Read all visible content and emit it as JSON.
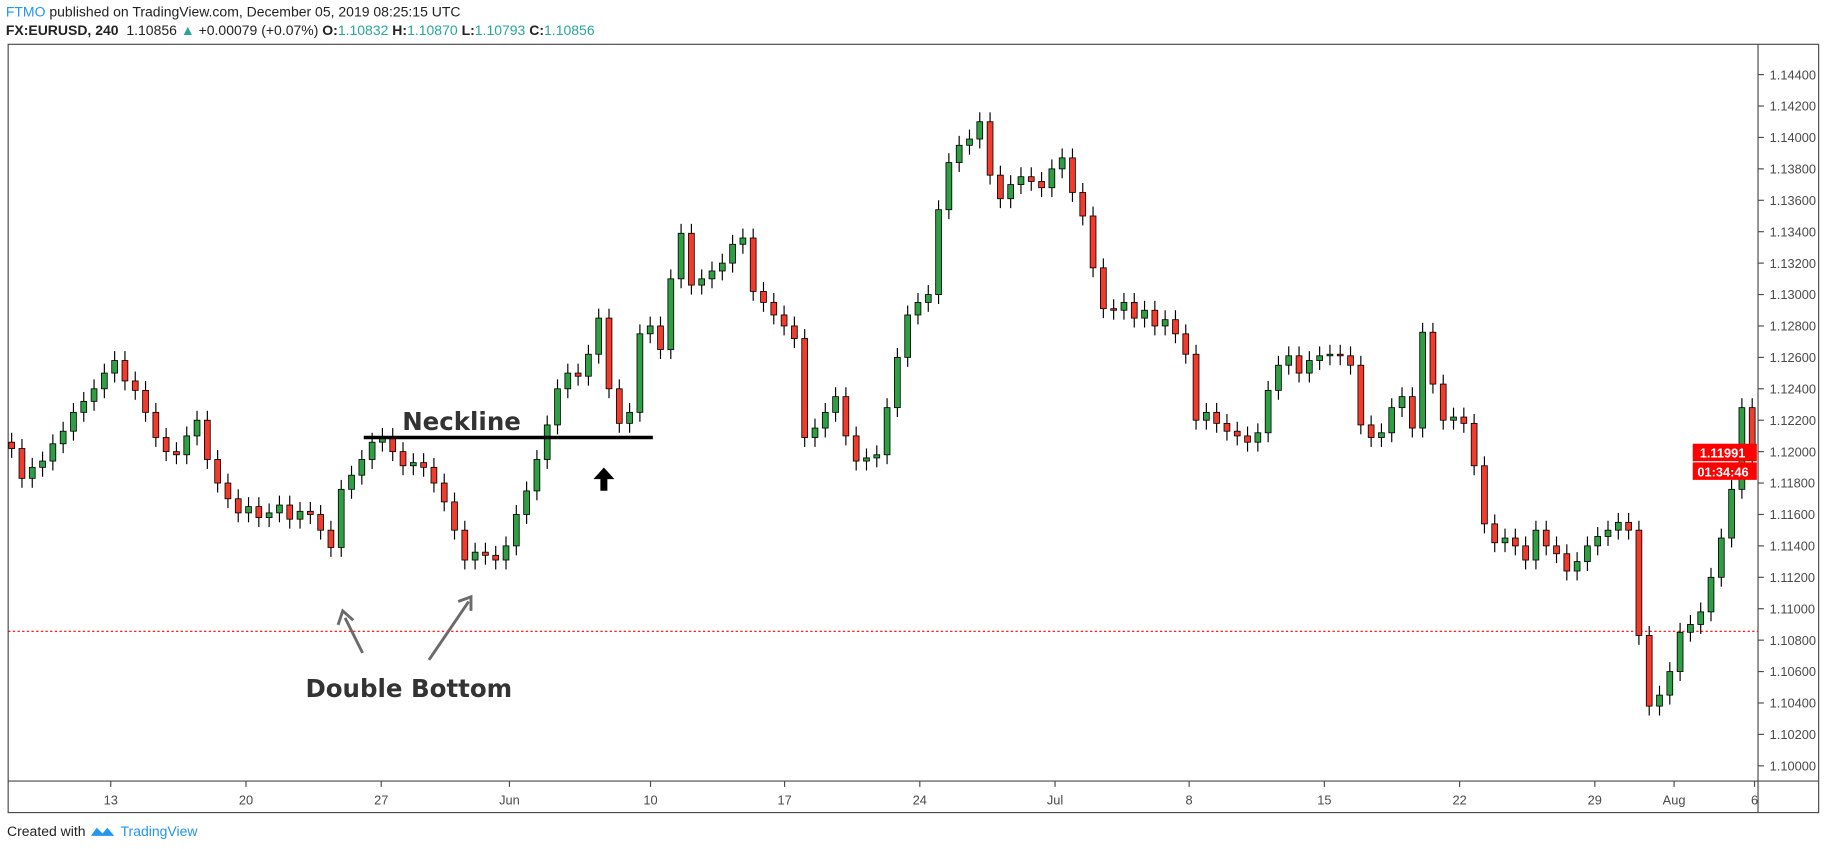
{
  "header": {
    "publisher": "FTMO",
    "published_text": "published on TradingView.com, December 05, 2019 08:25:15 UTC",
    "symbol": "FX:EURUSD, 240",
    "last": "1.10856",
    "change": "+0.00079 (+0.07%)",
    "o_label": "O:",
    "o": "1.10832",
    "h_label": "H:",
    "h": "1.10870",
    "l_label": "L:",
    "l": "1.10793",
    "c_label": "C:",
    "c": "1.10856",
    "up_icon": "triangle-up-icon"
  },
  "footer": {
    "created_with": "Created with",
    "brand": "TradingView"
  },
  "colors": {
    "up": "#2ea043",
    "down": "#f23b2b",
    "price_line": "#ff0000",
    "axis_text": "#4a4a4a",
    "brand": "#2196f3"
  },
  "chart_data": {
    "type": "candlestick",
    "symbol": "FX:EURUSD",
    "interval": "240",
    "ylim": [
      1.099,
      1.145
    ],
    "y_ticks": [
      "1.14400",
      "1.14200",
      "1.14000",
      "1.13800",
      "1.13600",
      "1.13400",
      "1.13200",
      "1.13000",
      "1.12800",
      "1.12600",
      "1.12400",
      "1.12200",
      "1.12000",
      "1.11800",
      "1.11600",
      "1.11400",
      "1.11200",
      "1.11000",
      "1.10800",
      "1.10600",
      "1.10400",
      "1.10200",
      "1.10000"
    ],
    "x_ticks": [
      "13",
      "20",
      "27",
      "Jun",
      "10",
      "17",
      "24",
      "Jul",
      "8",
      "15",
      "22",
      "29",
      "Aug",
      "6"
    ],
    "closes": [
      1.1202,
      1.1183,
      1.119,
      1.1194,
      1.1205,
      1.1213,
      1.1225,
      1.1232,
      1.124,
      1.125,
      1.1258,
      1.1245,
      1.1239,
      1.1225,
      1.1209,
      1.12,
      1.1198,
      1.121,
      1.122,
      1.1195,
      1.118,
      1.117,
      1.1161,
      1.1165,
      1.1158,
      1.1161,
      1.1166,
      1.1157,
      1.1162,
      1.116,
      1.115,
      1.1139,
      1.1176,
      1.1185,
      1.1195,
      1.1206,
      1.1209,
      1.12,
      1.1191,
      1.1193,
      1.119,
      1.118,
      1.1168,
      1.115,
      1.1131,
      1.1136,
      1.1134,
      1.1131,
      1.114,
      1.116,
      1.1175,
      1.1195,
      1.1217,
      1.124,
      1.125,
      1.1248,
      1.1262,
      1.1285,
      1.124,
      1.1218,
      1.1225,
      1.1275,
      1.128,
      1.1265,
      1.131,
      1.1339,
      1.1306,
      1.131,
      1.1315,
      1.132,
      1.1332,
      1.1336,
      1.1302,
      1.1295,
      1.1287,
      1.128,
      1.1272,
      1.1209,
      1.1215,
      1.1225,
      1.1235,
      1.121,
      1.1194,
      1.1196,
      1.1198,
      1.1228,
      1.126,
      1.1287,
      1.1295,
      1.13,
      1.1354,
      1.1384,
      1.1395,
      1.1399,
      1.141,
      1.1376,
      1.1361,
      1.137,
      1.1375,
      1.1372,
      1.1368,
      1.138,
      1.1387,
      1.1365,
      1.135,
      1.1317,
      1.1291,
      1.129,
      1.1295,
      1.1285,
      1.129,
      1.128,
      1.1284,
      1.1275,
      1.1262,
      1.122,
      1.1225,
      1.1218,
      1.1213,
      1.121,
      1.1206,
      1.1212,
      1.1239,
      1.1255,
      1.1261,
      1.125,
      1.1258,
      1.1261,
      1.1262,
      1.1261,
      1.1255,
      1.1217,
      1.1209,
      1.1212,
      1.1228,
      1.1235,
      1.1215,
      1.1276,
      1.1243,
      1.122,
      1.1222,
      1.1218,
      1.1191,
      1.1154,
      1.1142,
      1.1145,
      1.114,
      1.1131,
      1.115,
      1.114,
      1.1135,
      1.1124,
      1.113,
      1.114,
      1.1146,
      1.115,
      1.1155,
      1.115,
      1.1083,
      1.1038,
      1.1045,
      1.106,
      1.1085,
      1.109,
      1.1098,
      1.112,
      1.1145,
      1.1176,
      1.1228,
      1.1199
    ],
    "horizontal_line": 1.10856,
    "neckline_price": 1.1209,
    "price_label": "1.11991",
    "countdown": "01:34:46",
    "annotations": {
      "neckline": "Neckline",
      "double_bottom": "Double Bottom"
    }
  }
}
